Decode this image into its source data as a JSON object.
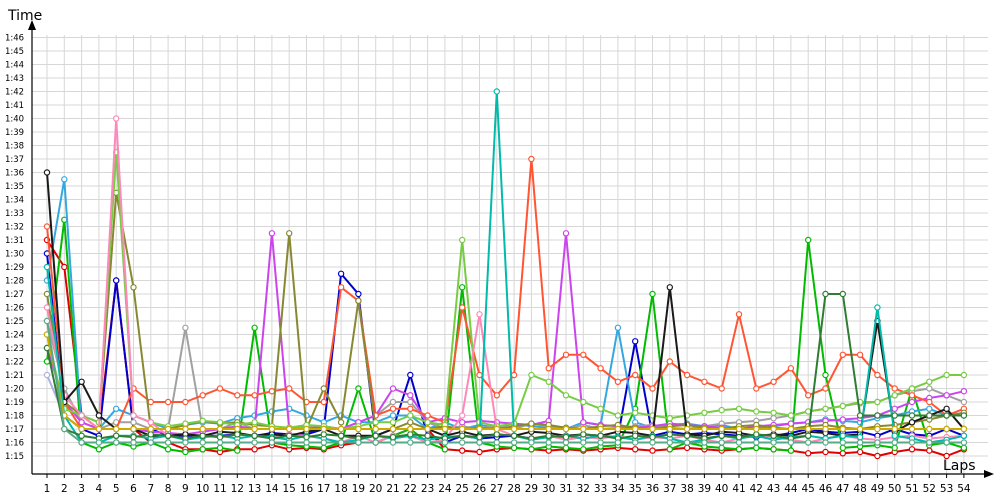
{
  "chart_data": {
    "type": "line",
    "ylabel": "Time",
    "xlabel": "Laps",
    "xlim": [
      1,
      54
    ],
    "ylim": [
      "1:14",
      "1:47"
    ],
    "y_ticks": [
      "1:15",
      "1:16",
      "1:17",
      "1:18",
      "1:19",
      "1:20",
      "1:21",
      "1:22",
      "1:23",
      "1:24",
      "1:25",
      "1:26",
      "1:27",
      "1:28",
      "1:29",
      "1:30",
      "1:31",
      "1:32",
      "1:33",
      "1:34",
      "1:35",
      "1:36",
      "1:37",
      "1:38",
      "1:39",
      "1:40",
      "1:41",
      "1:42",
      "1:43",
      "1:44",
      "1:45",
      "1:46"
    ],
    "x_ticks": [
      "1",
      "2",
      "3",
      "4",
      "5",
      "6",
      "7",
      "8",
      "9",
      "10",
      "11",
      "12",
      "13",
      "14",
      "15",
      "16",
      "17",
      "18",
      "19",
      "20",
      "21",
      "22",
      "23",
      "24",
      "25",
      "26",
      "27",
      "28",
      "29",
      "30",
      "31",
      "32",
      "33",
      "34",
      "35",
      "36",
      "37",
      "38",
      "39",
      "40",
      "41",
      "42",
      "43",
      "44",
      "45",
      "46",
      "47",
      "48",
      "49",
      "50",
      "51",
      "52",
      "53",
      "54"
    ],
    "grid": true,
    "legend": "none",
    "series": [
      {
        "color": "#e00000",
        "values": [
          "1:31",
          "1:29",
          "1:18",
          "1:17",
          "1:28",
          "1:17",
          "1:16",
          "1:16",
          "1:15.5",
          "1:15.5",
          "1:15.3",
          "1:15.5",
          "1:15.5",
          "1:15.8",
          "1:15.5",
          "1:15.6",
          "1:15.5",
          "1:15.8",
          "1:16",
          "1:16",
          "1:16.5",
          "1:17",
          "1:17",
          "1:15.5",
          "1:15.4",
          "1:15.3",
          "1:15.5",
          "1:15.6",
          "1:15.5",
          "1:15.4",
          "1:15.5",
          "1:15.4",
          "1:15.5",
          "1:15.6",
          "1:15.5",
          "1:15.4",
          "1:15.5",
          "1:15.6",
          "1:15.5",
          "1:15.4",
          "1:15.5",
          "1:15.6",
          "1:15.5",
          "1:15.4",
          "1:15.2",
          "1:15.3",
          "1:15.2",
          "1:15.3",
          "1:15",
          "1:15.3",
          "1:15.5",
          "1:15.4",
          "1:15",
          "1:15.5"
        ]
      },
      {
        "color": "#0000cc",
        "values": [
          "1:30",
          "1:18",
          "1:17",
          "1:16.5",
          "1:28",
          "1:17",
          "1:17",
          "1:16.5",
          "1:16.5",
          "1:16.5",
          "1:16.5",
          "1:16.6",
          "1:16.5",
          "1:16.7",
          "1:16.6",
          "1:16.6",
          "1:17",
          "1:28.5",
          "1:27",
          "1:16.5",
          "1:17",
          "1:21",
          "1:16.5",
          "1:16",
          "1:16.5",
          "1:16.3",
          "1:16.4",
          "1:16.5",
          "1:16.3",
          "1:16.4",
          "1:16.5",
          "1:16.3",
          "1:16.5",
          "1:16.4",
          "1:23.5",
          "1:16.5",
          "1:16.8",
          "1:16.6",
          "1:16.7",
          "1:16.6",
          "1:16.5",
          "1:16.4",
          "1:16.5",
          "1:16.7",
          "1:17",
          "1:16.8",
          "1:16.7",
          "1:16.8",
          "1:16.5",
          "1:17",
          "1:16.6",
          "1:16.5",
          "1:17",
          "1:16.5"
        ]
      },
      {
        "color": "#00bb00",
        "values": [
          "1:22",
          "1:32.5",
          "1:16",
          "1:15.5",
          "1:16",
          "1:15.7",
          "1:16",
          "1:15.5",
          "1:15.3",
          "1:15.5",
          "1:15.6",
          "1:15.4",
          "1:24.5",
          "1:16",
          "1:15.8",
          "1:15.7",
          "1:15.6",
          "1:16",
          "1:20",
          "1:16",
          "1:16.5",
          "1:17",
          "1:16",
          "1:15.5",
          "1:27.5",
          "1:16",
          "1:15.7",
          "1:15.6",
          "1:15.5",
          "1:15.7",
          "1:15.6",
          "1:15.5",
          "1:15.7",
          "1:15.8",
          "1:18.5",
          "1:27",
          "1:15.5",
          "1:16",
          "1:15.7",
          "1:15.6",
          "1:15.5",
          "1:15.6",
          "1:15.5",
          "1:15.4",
          "1:31",
          "1:21",
          "1:15.6",
          "1:15.7",
          "1:15.8",
          "1:15.6",
          "1:20",
          "1:15.8",
          "1:16",
          "1:15.6"
        ]
      },
      {
        "color": "#33a8e0",
        "values": [
          "1:28",
          "1:35.5",
          "1:17",
          "1:17",
          "1:18.5",
          "1:18",
          "1:17.5",
          "1:17",
          "1:17.3",
          "1:17.5",
          "1:17.4",
          "1:17.8",
          "1:18",
          "1:18.3",
          "1:18.5",
          "1:18",
          "1:17.5",
          "1:18",
          "1:17.5",
          "1:17.5",
          "1:18",
          "1:18",
          "1:17",
          "1:17.5",
          "1:17",
          "1:17.3",
          "1:17.1",
          "1:17.4",
          "1:17.2",
          "1:17.1",
          "1:17",
          "1:17.5",
          "1:17.3",
          "1:24.5",
          "1:17.5",
          "1:17.1",
          "1:17.3",
          "1:17.4",
          "1:17.2",
          "1:17.3",
          "1:17",
          "1:17.1",
          "1:17.2",
          "1:17.4",
          "1:17.5",
          "1:17.7",
          "1:17.6",
          "1:17.5",
          "1:17.8",
          "1:18",
          "1:18.3",
          "1:18.5",
          "1:18",
          "1:18"
        ]
      },
      {
        "color": "#a0a0a0",
        "values": [
          "1:25",
          "1:20",
          "1:17.5",
          "1:17",
          "1:17.5",
          "1:17.5",
          "1:17",
          "1:17",
          "1:24.5",
          "1:17",
          "1:17",
          "1:17.5",
          "1:17",
          "1:17",
          "1:17",
          "1:17.2",
          "1:17",
          "1:17",
          "1:17.5",
          "1:18",
          "1:19",
          "1:19",
          "1:17.5",
          "1:17",
          "1:17.2",
          "1:17",
          "1:17.3",
          "1:17",
          "1:17.4",
          "1:17.2",
          "1:17",
          "1:17.3",
          "1:17",
          "1:17.1",
          "1:17.2",
          "1:17.3",
          "1:17.1",
          "1:17",
          "1:17.2",
          "1:17.4",
          "1:17.5",
          "1:17.6",
          "1:17.8",
          "1:18",
          "1:18.3",
          "1:18.5",
          "1:18.7",
          "1:18.9",
          "1:19",
          "1:19.5",
          "1:19.8",
          "1:20",
          "1:19.5",
          "1:19"
        ]
      },
      {
        "color": "#cc44ee",
        "values": [
          "1:23",
          "1:19",
          "1:17.5",
          "1:17",
          "1:17",
          "1:17",
          "1:16.8",
          "1:16.7",
          "1:16.6",
          "1:16.8",
          "1:17",
          "1:17.2",
          "1:17",
          "1:31.5",
          "1:17",
          "1:17",
          "1:17.2",
          "1:17",
          "1:17.5",
          "1:18",
          "1:20",
          "1:19.5",
          "1:17.5",
          "1:17.8",
          "1:17.5",
          "1:17.6",
          "1:17.5",
          "1:17.4",
          "1:17.3",
          "1:17.6",
          "1:31.5",
          "1:17.5",
          "1:17.3",
          "1:17.2",
          "1:17.1",
          "1:17.2",
          "1:17.4",
          "1:17.3",
          "1:17.2",
          "1:17.1",
          "1:17",
          "1:17.2",
          "1:17.3",
          "1:17.4",
          "1:17.5",
          "1:17.6",
          "1:17.7",
          "1:17.8",
          "1:18",
          "1:18.5",
          "1:19",
          "1:19.3",
          "1:19.5",
          "1:19.8"
        ]
      },
      {
        "color": "#ff5533",
        "values": [
          "1:32",
          "1:19",
          "1:17",
          "1:17",
          "1:17",
          "1:20",
          "1:19",
          "1:19",
          "1:19",
          "1:19.5",
          "1:20",
          "1:19.5",
          "1:19.5",
          "1:19.8",
          "1:20",
          "1:19",
          "1:19",
          "1:27.5",
          "1:26.5",
          "1:18",
          "1:18.5",
          "1:18.5",
          "1:18",
          "1:17.5",
          "1:26",
          "1:21",
          "1:19.5",
          "1:21",
          "1:37",
          "1:21.5",
          "1:22.5",
          "1:22.5",
          "1:21.5",
          "1:20.5",
          "1:21",
          "1:20",
          "1:22",
          "1:21",
          "1:20.5",
          "1:20",
          "1:25.5",
          "1:20",
          "1:20.5",
          "1:21.5",
          "1:19.5",
          "1:20",
          "1:22.5",
          "1:22.5",
          "1:21",
          "1:20",
          "1:19.5",
          "1:19",
          "1:18",
          "1:18.5"
        ]
      },
      {
        "color": "#888833",
        "values": [
          "1:27",
          "1:19",
          "1:18",
          "1:17.5",
          "1:34.5",
          "1:27.5",
          "1:17",
          "1:17",
          "1:17.3",
          "1:17.6",
          "1:17.4",
          "1:17.5",
          "1:17.3",
          "1:17.2",
          "1:31.5",
          "1:17",
          "1:20",
          "1:17.5",
          "1:26.5",
          "1:17",
          "1:17",
          "1:17.5",
          "1:17",
          "1:17.2",
          "1:17",
          "1:17.1",
          "1:17",
          "1:17.2",
          "1:17.4",
          "1:17.3",
          "1:17.1",
          "1:17",
          "1:17.2",
          "1:17.3",
          "1:17.1",
          "1:17",
          "1:17.2",
          "1:17.3",
          "1:17.1",
          "1:17",
          "1:17.2",
          "1:17.3",
          "1:17.1",
          "1:17",
          "1:17.2",
          "1:17.3",
          "1:17.1",
          "1:17",
          "1:17.2",
          "1:17.3",
          "1:17.5",
          "1:17.7",
          "1:18",
          "1:18.2"
        ]
      },
      {
        "color": "#77cc44",
        "values": [
          "1:24",
          "1:18.5",
          "1:18",
          "1:17.5",
          "1:37.5",
          "1:18",
          "1:17.5",
          "1:17.2",
          "1:17.4",
          "1:17.6",
          "1:17.5",
          "1:17.3",
          "1:17.5",
          "1:17.2",
          "1:17.1",
          "1:17.3",
          "1:17.2",
          "1:17",
          "1:17.2",
          "1:17.5",
          "1:17.5",
          "1:18",
          "1:17.5",
          "1:17.3",
          "1:31",
          "1:17.5",
          "1:17.2",
          "1:17.4",
          "1:21",
          "1:20.5",
          "1:19.5",
          "1:19",
          "1:18.5",
          "1:18",
          "1:18.2",
          "1:18",
          "1:17.8",
          "1:18",
          "1:18.2",
          "1:18.4",
          "1:18.5",
          "1:18.3",
          "1:18.2",
          "1:18",
          "1:18.3",
          "1:18.5",
          "1:18.7",
          "1:19",
          "1:19",
          "1:19.5",
          "1:20",
          "1:20.5",
          "1:21",
          "1:21"
        ]
      },
      {
        "color": "#ff88bb",
        "values": [
          "1:26",
          "1:19.5",
          "1:18",
          "1:17",
          "1:40",
          "1:18",
          "1:17.5",
          "1:16.5",
          "1:16.3",
          "1:16.5",
          "1:16.4",
          "1:16.6",
          "1:16.5",
          "1:16.4",
          "1:16.6",
          "1:16.5",
          "1:16.3",
          "1:16",
          "1:16.5",
          "1:16",
          "1:16.5",
          "1:16.5",
          "1:16",
          "1:16.2",
          "1:18",
          "1:25.5",
          "1:17",
          "1:16.5",
          "1:16.3",
          "1:16.5",
          "1:16.2",
          "1:16.4",
          "1:16.3",
          "1:16.5",
          "1:16.2",
          "1:16.4",
          "1:16.3",
          "1:16.5",
          "1:16.2",
          "1:16",
          "1:16.3",
          "1:16.5",
          "1:16.4",
          "1:16.2",
          "1:16",
          "1:16.3",
          "1:16.5",
          "1:16.3",
          "1:16.2",
          "1:16.4",
          "1:16.5",
          "1:16.3",
          "1:16.4",
          "1:16.5"
        ]
      },
      {
        "color": "#1a1a1a",
        "values": [
          "1:36",
          "1:19",
          "1:20.5",
          "1:18",
          "1:17",
          "1:17",
          "1:16.5",
          "1:16.5",
          "1:16.6",
          "1:16.5",
          "1:16.8",
          "1:16.7",
          "1:16.5",
          "1:16.6",
          "1:16.5",
          "1:16.8",
          "1:17",
          "1:16.5",
          "1:16.5",
          "1:16.5",
          "1:17",
          "1:17",
          "1:17",
          "1:16.5",
          "1:16.8",
          "1:16.5",
          "1:16.6",
          "1:16.5",
          "1:16.8",
          "1:16.7",
          "1:16.5",
          "1:16.6",
          "1:16.5",
          "1:16.8",
          "1:16.7",
          "1:16.5",
          "1:27.5",
          "1:16.6",
          "1:16.5",
          "1:16.8",
          "1:16.7",
          "1:16.5",
          "1:16.6",
          "1:16.5",
          "1:16.8",
          "1:16.7",
          "1:16.5",
          "1:16.6",
          "1:25",
          "1:16.8",
          "1:17.5",
          "1:18",
          "1:18.5",
          "1:17"
        ]
      },
      {
        "color": "#00bbaa",
        "values": [
          "1:29",
          "1:18",
          "1:16",
          "1:16",
          "1:16.5",
          "1:16.5",
          "1:16.3",
          "1:16.5",
          "1:16.2",
          "1:16.4",
          "1:16.5",
          "1:16.3",
          "1:16.5",
          "1:16.4",
          "1:16.2",
          "1:16.5",
          "1:16.3",
          "1:16",
          "1:16.2",
          "1:16.5",
          "1:16.3",
          "1:16.5",
          "1:16.2",
          "1:16.4",
          "1:16.5",
          "1:16.3",
          "1:42",
          "1:16.5",
          "1:16.2",
          "1:16.4",
          "1:16.5",
          "1:16.3",
          "1:16.5",
          "1:16.4",
          "1:16.2",
          "1:16.5",
          "1:16.3",
          "1:16",
          "1:16.2",
          "1:16.5",
          "1:16.3",
          "1:16.5",
          "1:16.2",
          "1:16.4",
          "1:16.5",
          "1:16.3",
          "1:16.5",
          "1:16.4",
          "1:26",
          "1:16.5",
          "1:16.3",
          "1:16",
          "1:16.2",
          "1:16.5"
        ]
      },
      {
        "color": "#b0b0e0",
        "values": [
          "1:21",
          "1:18",
          "1:17",
          "1:17",
          "1:17",
          "1:17",
          "1:17",
          "1:17",
          "1:17",
          "1:17",
          "1:17",
          "1:17",
          "1:17",
          "1:17",
          "1:17",
          "1:17",
          "1:17",
          "1:17",
          "1:17",
          "1:17",
          "1:17",
          "1:17",
          "1:17",
          "1:17",
          "1:17",
          "1:17",
          "1:17",
          "1:17",
          "1:17",
          "1:17",
          "1:17",
          "1:17",
          "1:17",
          "1:17",
          "1:17",
          "1:17",
          "1:17",
          "1:17",
          "1:17",
          "1:17",
          "1:17",
          "1:17",
          "1:17",
          "1:17",
          "1:17",
          "1:17",
          "1:17",
          "1:17",
          "1:17",
          "1:17",
          "1:17",
          "1:17",
          "1:17",
          "1:17"
        ]
      },
      {
        "color": "#2e7d32",
        "values": [
          "1:23",
          "1:17",
          "1:16.5",
          "1:16.3",
          "1:16.5",
          "1:16.4",
          "1:16.6",
          "1:16.5",
          "1:16.3",
          "1:16.5",
          "1:16.4",
          "1:16.6",
          "1:16.5",
          "1:16.3",
          "1:16.5",
          "1:16.4",
          "1:16.6",
          "1:16.5",
          "1:16.3",
          "1:16.5",
          "1:16.4",
          "1:16.6",
          "1:16.5",
          "1:16.3",
          "1:16.5",
          "1:16.4",
          "1:16.6",
          "1:16.5",
          "1:16.3",
          "1:16.5",
          "1:16.4",
          "1:16.6",
          "1:16.5",
          "1:16.3",
          "1:16.5",
          "1:16.4",
          "1:16.6",
          "1:16.5",
          "1:16.3",
          "1:16.5",
          "1:16.4",
          "1:16.6",
          "1:16.5",
          "1:16.3",
          "1:16.5",
          "1:27",
          "1:27",
          "1:18",
          "1:18",
          "1:18",
          "1:18",
          "1:18",
          "1:18",
          "1:18"
        ]
      },
      {
        "color": "#ccaa00",
        "values": [
          "1:24",
          "1:18",
          "1:17",
          "1:17",
          "1:17",
          "1:17",
          "1:17",
          "1:17",
          "1:17",
          "1:17",
          "1:17",
          "1:17",
          "1:17",
          "1:17",
          "1:17",
          "1:17",
          "1:17",
          "1:17",
          "1:17",
          "1:17",
          "1:17",
          "1:17",
          "1:17",
          "1:17",
          "1:17",
          "1:17",
          "1:17",
          "1:17",
          "1:17",
          "1:17",
          "1:17",
          "1:17",
          "1:17",
          "1:17",
          "1:17",
          "1:17",
          "1:17",
          "1:17",
          "1:17",
          "1:17",
          "1:17",
          "1:17",
          "1:17",
          "1:17",
          "1:17",
          "1:17",
          "1:17",
          "1:17",
          "1:17",
          "1:17",
          "1:17",
          "1:17",
          "1:17",
          "1:17"
        ]
      },
      {
        "color": "#55aa88",
        "values": [
          "1:25",
          "1:17",
          "1:16",
          "1:16",
          "1:16",
          "1:16",
          "1:16",
          "1:16",
          "1:16",
          "1:16",
          "1:16",
          "1:16",
          "1:16",
          "1:16",
          "1:16",
          "1:16",
          "1:16",
          "1:16",
          "1:16",
          "1:16",
          "1:16",
          "1:16",
          "1:16",
          "1:16",
          "1:16",
          "1:16",
          "1:16",
          "1:16",
          "1:16",
          "1:16",
          "1:16",
          "1:16",
          "1:16",
          "1:16",
          "1:16",
          "1:16",
          "1:16",
          "1:16",
          "1:16",
          "1:16",
          "1:16",
          "1:16",
          "1:16",
          "1:16",
          "1:16",
          "1:16",
          "1:16",
          "1:16",
          "1:16",
          "1:16",
          "1:16",
          "1:16",
          "1:16",
          "1:16"
        ]
      }
    ]
  }
}
